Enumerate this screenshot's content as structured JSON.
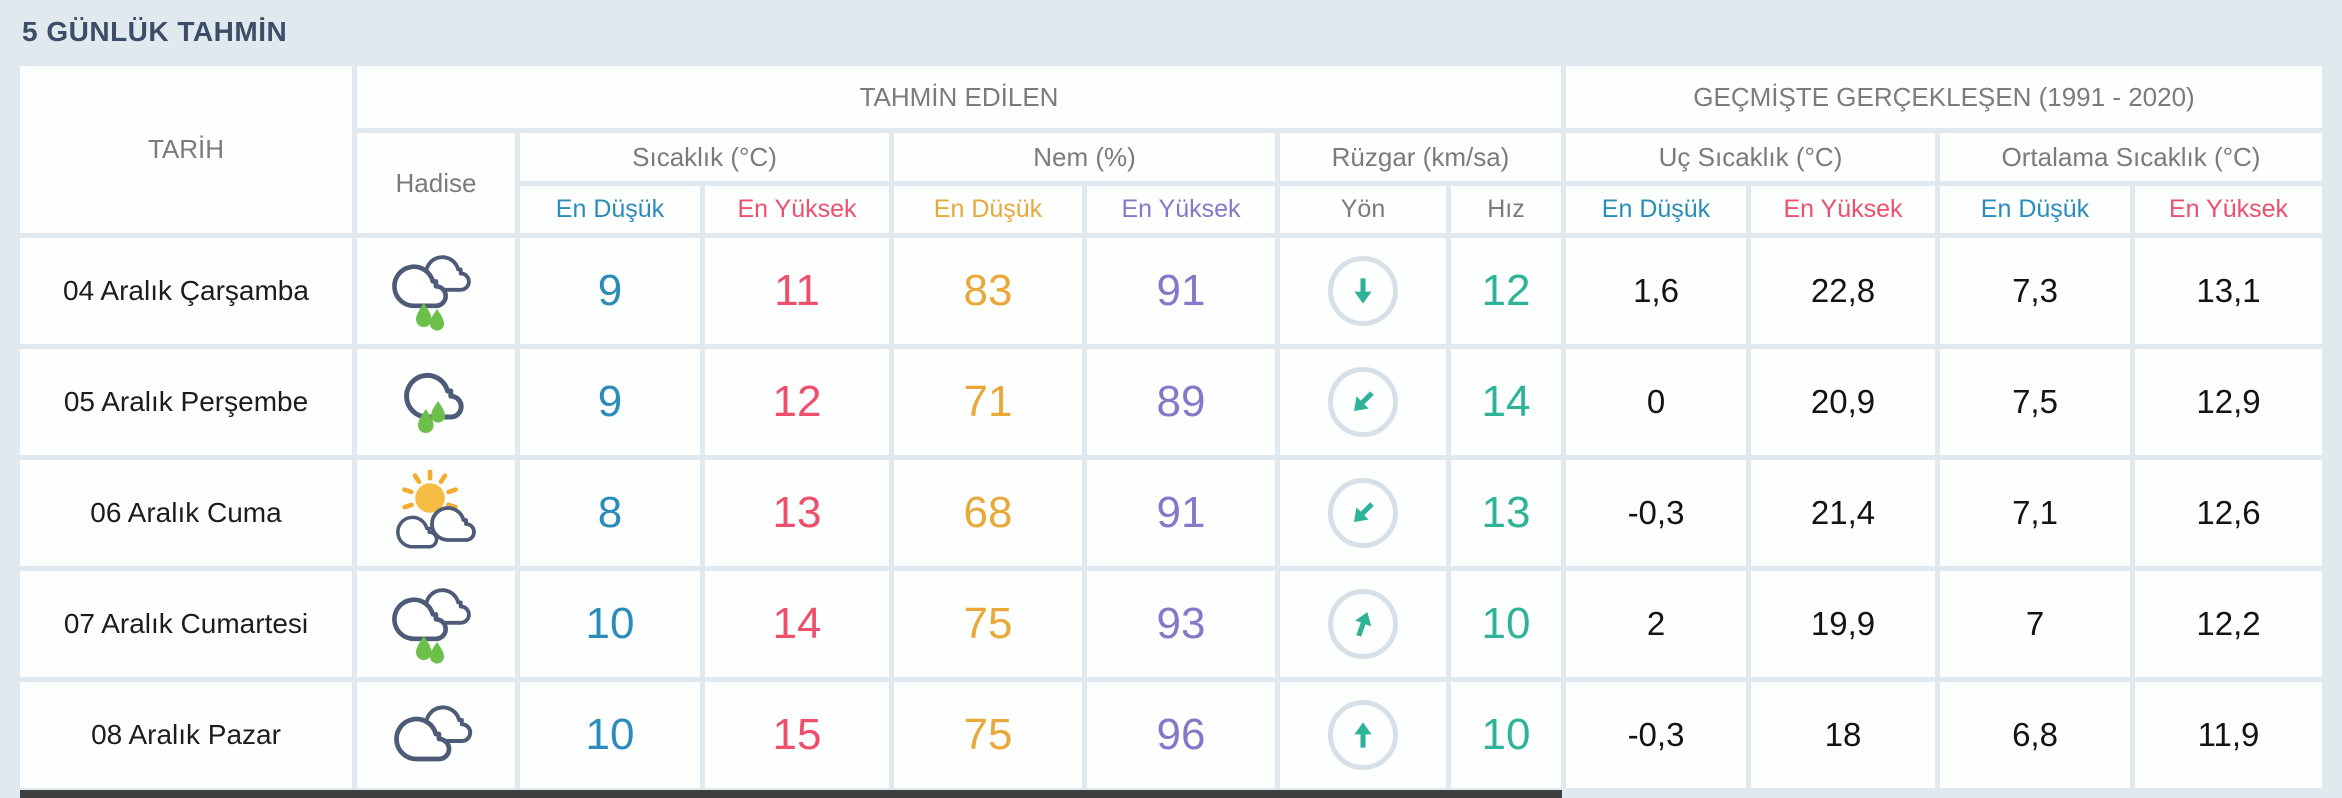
{
  "title": "5 GÜNLÜK TAHMİN",
  "table": {
    "col_tarih": "TARİH",
    "col_hadise": "Hadise",
    "group_forecast": "TAHMİN EDİLEN",
    "group_past": "GEÇMİŞTE GERÇEKLEŞEN (1991 - 2020)",
    "sub_temp": "Sıcaklık (°C)",
    "sub_humidity": "Nem (%)",
    "sub_wind": "Rüzgar (km/sa)",
    "sub_extreme": "Uç Sıcaklık (°C)",
    "sub_avg": "Ortalama Sıcaklık (°C)",
    "lbl_min": "En Düşük",
    "lbl_max": "En Yüksek",
    "lbl_dir": "Yön",
    "lbl_speed": "Hız"
  },
  "colors": {
    "title_navy": "#3c4d68",
    "accent_blue": "#2b8cba",
    "accent_red": "#ee4f6d",
    "accent_orange": "#e9a83a",
    "accent_purple": "#8678c8",
    "accent_teal": "#2fb398",
    "cloud_outline": "#4e5b77",
    "rain_green": "#6cc04a",
    "sun_yellow": "#f6bd45"
  },
  "rows": [
    {
      "date": "04 Aralık Çarşamba",
      "icon": "clouds-rain",
      "temp_min": "9",
      "temp_max": "11",
      "hum_min": "83",
      "hum_max": "91",
      "wind_dir_deg": 180,
      "wind_speed": "12",
      "ext_min": "1,6",
      "ext_max": "22,8",
      "avg_min": "7,3",
      "avg_max": "13,1"
    },
    {
      "date": "05 Aralık Perşembe",
      "icon": "cloud-rain",
      "temp_min": "9",
      "temp_max": "12",
      "hum_min": "71",
      "hum_max": "89",
      "wind_dir_deg": 225,
      "wind_speed": "14",
      "ext_min": "0",
      "ext_max": "20,9",
      "avg_min": "7,5",
      "avg_max": "12,9"
    },
    {
      "date": "06 Aralık Cuma",
      "icon": "sun-clouds",
      "temp_min": "8",
      "temp_max": "13",
      "hum_min": "68",
      "hum_max": "91",
      "wind_dir_deg": 225,
      "wind_speed": "13",
      "ext_min": "-0,3",
      "ext_max": "21,4",
      "avg_min": "7,1",
      "avg_max": "12,6"
    },
    {
      "date": "07 Aralık Cumartesi",
      "icon": "clouds-rain",
      "temp_min": "10",
      "temp_max": "14",
      "hum_min": "75",
      "hum_max": "93",
      "wind_dir_deg": 20,
      "wind_speed": "10",
      "ext_min": "2",
      "ext_max": "19,9",
      "avg_min": "7",
      "avg_max": "12,2"
    },
    {
      "date": "08 Aralık Pazar",
      "icon": "clouds",
      "temp_min": "10",
      "temp_max": "15",
      "hum_min": "75",
      "hum_max": "96",
      "wind_dir_deg": 0,
      "wind_speed": "10",
      "ext_min": "-0,3",
      "ext_max": "18",
      "avg_min": "6,8",
      "avg_max": "11,9"
    }
  ]
}
